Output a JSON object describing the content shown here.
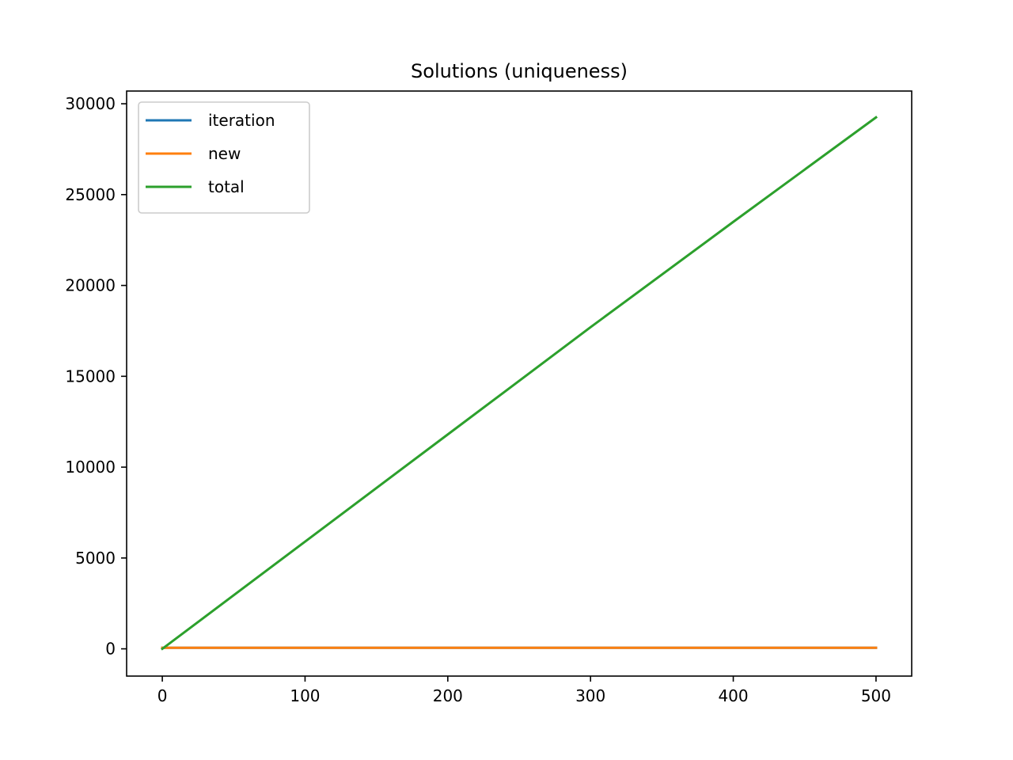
{
  "chart_data": {
    "type": "line",
    "title": "Solutions (uniqueness)",
    "xlabel": "",
    "ylabel": "",
    "xlim": [
      -25,
      525
    ],
    "ylim": [
      -1500,
      30700
    ],
    "xticks": [
      0,
      100,
      200,
      300,
      400,
      500
    ],
    "yticks": [
      0,
      5000,
      10000,
      15000,
      20000,
      25000,
      30000
    ],
    "grid": false,
    "legend_position": "top-left",
    "series": [
      {
        "name": "iteration",
        "color": "#1f77b4",
        "x": [
          0,
          500
        ],
        "y": [
          60,
          60
        ]
      },
      {
        "name": "new",
        "color": "#ff7f0e",
        "x": [
          0,
          500
        ],
        "y": [
          60,
          60
        ]
      },
      {
        "name": "total",
        "color": "#2ca02c",
        "x": [
          0,
          100,
          200,
          300,
          400,
          500
        ],
        "y": [
          0,
          5900,
          11800,
          17700,
          23500,
          29250
        ]
      }
    ]
  }
}
